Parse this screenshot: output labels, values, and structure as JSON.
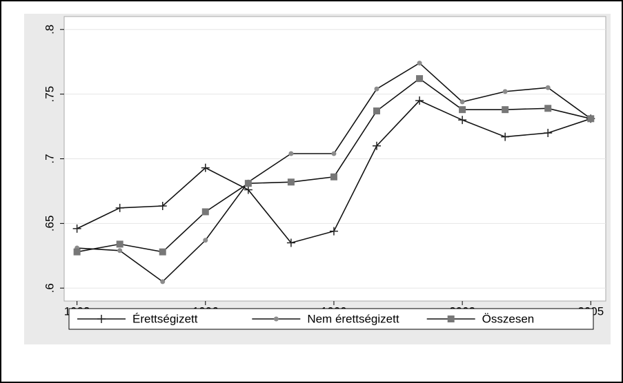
{
  "chart_data": {
    "type": "line",
    "x": [
      1993,
      1994,
      1995,
      1996,
      1997,
      1998,
      1999,
      2000,
      2001,
      2002,
      2003,
      2004,
      2005
    ],
    "series": [
      {
        "name": "Érettségizett",
        "color": "#222222",
        "marker": "plus",
        "values": [
          0.646,
          0.662,
          0.6635,
          0.693,
          0.676,
          0.635,
          0.644,
          0.71,
          0.745,
          0.73,
          0.717,
          0.72,
          0.731
        ]
      },
      {
        "name": "Nem érettségizett",
        "color": "#8c8c8c",
        "marker": "circle",
        "values": [
          0.631,
          0.629,
          0.605,
          0.637,
          0.682,
          0.704,
          0.704,
          0.754,
          0.774,
          0.744,
          0.752,
          0.755,
          0.731
        ]
      },
      {
        "name": "Összesen",
        "color": "#777777",
        "marker": "square",
        "values": [
          0.628,
          0.634,
          0.628,
          0.659,
          0.681,
          0.682,
          0.686,
          0.737,
          0.762,
          0.738,
          0.738,
          0.739,
          0.731
        ]
      }
    ],
    "line_color": "#111111",
    "xlim": [
      1992.7,
      2005.35
    ],
    "xticks": [
      1993,
      1996,
      1999,
      2002,
      2005
    ],
    "ylim": [
      0.59,
      0.81
    ],
    "yticks": [
      {
        "value": 0.6,
        "label": ".6"
      },
      {
        "value": 0.65,
        "label": ".65"
      },
      {
        "value": 0.7,
        "label": ".7"
      },
      {
        "value": 0.75,
        "label": ".75"
      },
      {
        "value": 0.8,
        "label": ".8"
      }
    ],
    "grid": true,
    "legend": "bottom"
  }
}
